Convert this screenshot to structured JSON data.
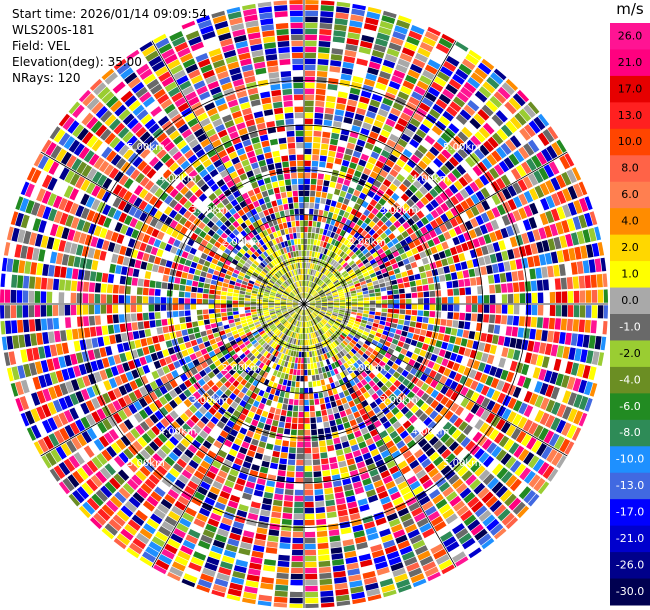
{
  "header": {
    "start_time": "Start time: 2026/01/14 09:09:54",
    "instrument": "WLS200s-181",
    "field": "Field: VEL",
    "elevation": "Elevation(deg): 35.00",
    "nrays": "NRays: 120"
  },
  "colorbar": {
    "unit": "m/s",
    "ticks": [
      "26.0",
      "21.0",
      "17.0",
      "13.0",
      "10.0",
      "8.0",
      "6.0",
      "4.0",
      "2.0",
      "1.0",
      "0.0",
      "-1.0",
      "-2.0",
      "-4.0",
      "-6.0",
      "-8.0",
      "-10.0",
      "-13.0",
      "-17.0",
      "-21.0",
      "-26.0",
      "-30.0"
    ],
    "colors": [
      "#ff1493",
      "#ff007f",
      "#e60000",
      "#ff2020",
      "#ff4500",
      "#ff6347",
      "#ff7f50",
      "#ff8c00",
      "#ffd700",
      "#ffff00",
      "#a9a9a9",
      "#696969",
      "#9acd32",
      "#6b8e23",
      "#228b22",
      "#2e8b57",
      "#1e90ff",
      "#4169e1",
      "#0000ff",
      "#0000cd",
      "#00008b",
      "#000050"
    ],
    "label_colors": [
      "#000",
      "#000",
      "#000",
      "#000",
      "#000",
      "#000",
      "#000",
      "#000",
      "#000",
      "#000",
      "#000",
      "#fff",
      "#000",
      "#fff",
      "#fff",
      "#fff",
      "#fff",
      "#fff",
      "#fff",
      "#fff",
      "#fff",
      "#fff"
    ]
  },
  "chart_data": {
    "type": "heatmap",
    "projection": "polar (PPI)",
    "field": "VEL",
    "units": "m/s",
    "elevation_deg": 35.0,
    "nrays": 120,
    "range_rings": [
      "2.00km",
      "3.00km",
      "4.00km",
      "5.00km"
    ],
    "range_ring_values_km": [
      2.0,
      3.0,
      4.0,
      5.0
    ],
    "max_range_km": 6.8,
    "inner_region_km": 1.6,
    "description_of_values": "Near range (< ~1.6 km) dominated by -2 to 4 m/s (yellow/grey/green); beyond that, noisy values spanning full -30 to 26 m/s scale"
  }
}
